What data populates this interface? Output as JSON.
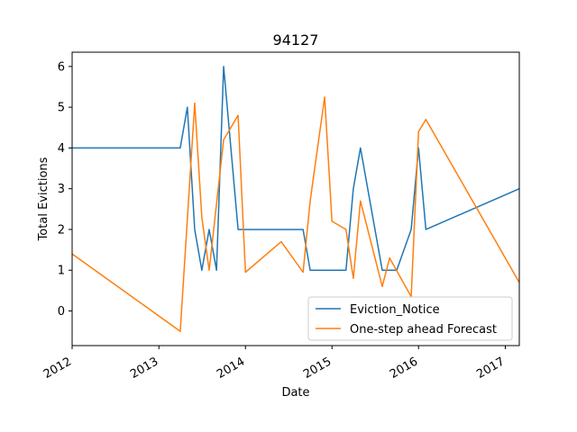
{
  "chart_data": {
    "type": "line",
    "title": "94127",
    "xlabel": "Date",
    "ylabel": "Total Evictions",
    "x_axis_type": "date",
    "xlim": [
      "2012-01-01",
      "2017-03-01"
    ],
    "ylim": [
      -0.85,
      6.35
    ],
    "x_ticks": [
      {
        "date": "2012-01-01",
        "label": "2012"
      },
      {
        "date": "2013-01-01",
        "label": "2013"
      },
      {
        "date": "2014-01-01",
        "label": "2014"
      },
      {
        "date": "2015-01-01",
        "label": "2015"
      },
      {
        "date": "2016-01-01",
        "label": "2016"
      },
      {
        "date": "2017-01-01",
        "label": "2017"
      }
    ],
    "y_ticks": [
      0,
      1,
      2,
      3,
      4,
      5,
      6
    ],
    "grid": false,
    "legend_position": "lower-right",
    "series": [
      {
        "name": "Eviction_Notice",
        "color": "#1f77b4",
        "points": [
          [
            "2012-01-01",
            4
          ],
          [
            "2013-04-01",
            4
          ],
          [
            "2013-05-01",
            5
          ],
          [
            "2013-06-01",
            2
          ],
          [
            "2013-07-01",
            1
          ],
          [
            "2013-08-01",
            2
          ],
          [
            "2013-09-01",
            1
          ],
          [
            "2013-10-01",
            6
          ],
          [
            "2013-12-01",
            2
          ],
          [
            "2014-09-01",
            2
          ],
          [
            "2014-10-01",
            1
          ],
          [
            "2015-03-01",
            1
          ],
          [
            "2015-04-01",
            3
          ],
          [
            "2015-05-01",
            4
          ],
          [
            "2015-08-01",
            1
          ],
          [
            "2015-10-01",
            1
          ],
          [
            "2015-12-01",
            2
          ],
          [
            "2016-01-01",
            4
          ],
          [
            "2016-02-01",
            2
          ],
          [
            "2017-03-01",
            3
          ]
        ]
      },
      {
        "name": "One-step ahead Forecast",
        "color": "#ff7f0e",
        "points": [
          [
            "2012-01-01",
            1.4
          ],
          [
            "2013-04-01",
            -0.5
          ],
          [
            "2013-06-01",
            5.1
          ],
          [
            "2013-07-01",
            2.3
          ],
          [
            "2013-08-01",
            1.0
          ],
          [
            "2013-10-01",
            4.2
          ],
          [
            "2013-12-01",
            4.8
          ],
          [
            "2014-01-01",
            0.95
          ],
          [
            "2014-06-01",
            1.7
          ],
          [
            "2014-09-01",
            0.95
          ],
          [
            "2014-10-01",
            2.7
          ],
          [
            "2014-12-01",
            5.25
          ],
          [
            "2015-01-01",
            2.2
          ],
          [
            "2015-03-01",
            2.0
          ],
          [
            "2015-04-01",
            0.8
          ],
          [
            "2015-05-01",
            2.7
          ],
          [
            "2015-08-01",
            0.6
          ],
          [
            "2015-09-01",
            1.3
          ],
          [
            "2015-12-01",
            0.35
          ],
          [
            "2016-01-01",
            4.4
          ],
          [
            "2016-02-01",
            4.7
          ],
          [
            "2017-03-01",
            0.7
          ]
        ]
      }
    ]
  }
}
